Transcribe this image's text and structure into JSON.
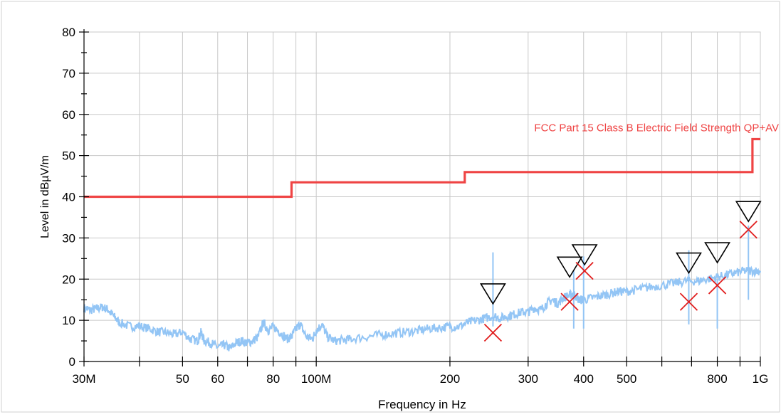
{
  "chart_data": {
    "type": "line",
    "xlabel": "Frequency in Hz",
    "ylabel": "Level in dBµV/m",
    "x_scale": "log",
    "xlim": [
      30000000,
      1000000000
    ],
    "ylim": [
      0,
      80
    ],
    "grid": true,
    "x_ticks": [
      {
        "value": 30000000,
        "label": "30M"
      },
      {
        "value": 50000000,
        "label": "50"
      },
      {
        "value": 60000000,
        "label": "60"
      },
      {
        "value": 80000000,
        "label": "80"
      },
      {
        "value": 100000000,
        "label": "100M"
      },
      {
        "value": 200000000,
        "label": "200"
      },
      {
        "value": 300000000,
        "label": "300"
      },
      {
        "value": 400000000,
        "label": "400"
      },
      {
        "value": 500000000,
        "label": "500"
      },
      {
        "value": 800000000,
        "label": "800"
      },
      {
        "value": 1000000000,
        "label": "1G"
      }
    ],
    "x_grid": [
      30000000,
      40000000,
      50000000,
      60000000,
      70000000,
      80000000,
      90000000,
      100000000,
      200000000,
      300000000,
      400000000,
      500000000,
      600000000,
      700000000,
      800000000,
      900000000,
      1000000000
    ],
    "y_ticks": [
      0,
      10,
      20,
      30,
      40,
      50,
      60,
      70,
      80
    ],
    "limit_line": {
      "label": "FCC Part 15 Class B Electric Field Strength QP+AV",
      "color": "#ef4444",
      "points": [
        [
          30000000,
          40
        ],
        [
          88000000,
          40
        ],
        [
          88000000,
          43.5
        ],
        [
          216000000,
          43.5
        ],
        [
          216000000,
          46
        ],
        [
          960000000,
          46
        ],
        [
          960000000,
          54
        ],
        [
          1000000000,
          54
        ]
      ]
    },
    "spectrum": {
      "color": "#93c5f5",
      "points": [
        [
          30000000,
          13
        ],
        [
          31000000,
          12.5
        ],
        [
          32000000,
          12.8
        ],
        [
          33000000,
          13.2
        ],
        [
          34000000,
          12.6
        ],
        [
          35000000,
          11
        ],
        [
          36000000,
          9.5
        ],
        [
          38000000,
          8.5
        ],
        [
          40000000,
          8.6
        ],
        [
          42000000,
          8
        ],
        [
          44000000,
          7.2
        ],
        [
          46000000,
          7
        ],
        [
          48000000,
          6.5
        ],
        [
          50000000,
          7.2
        ],
        [
          52000000,
          5.5
        ],
        [
          54000000,
          5
        ],
        [
          55000000,
          7
        ],
        [
          56000000,
          5
        ],
        [
          58000000,
          4.5
        ],
        [
          60000000,
          3.5
        ],
        [
          62000000,
          4
        ],
        [
          64000000,
          3.2
        ],
        [
          66000000,
          4.5
        ],
        [
          68000000,
          5
        ],
        [
          70000000,
          4.5
        ],
        [
          72000000,
          5
        ],
        [
          74000000,
          6
        ],
        [
          76000000,
          9.5
        ],
        [
          78000000,
          7.5
        ],
        [
          80000000,
          8.5
        ],
        [
          83000000,
          7
        ],
        [
          86000000,
          5.5
        ],
        [
          88000000,
          6
        ],
        [
          90000000,
          8
        ],
        [
          92000000,
          9
        ],
        [
          95000000,
          6
        ],
        [
          98000000,
          5.5
        ],
        [
          100000000,
          7.5
        ],
        [
          103000000,
          9
        ],
        [
          106000000,
          6
        ],
        [
          110000000,
          5
        ],
        [
          115000000,
          5.2
        ],
        [
          120000000,
          5.5
        ],
        [
          130000000,
          6
        ],
        [
          140000000,
          6.5
        ],
        [
          150000000,
          6.8
        ],
        [
          160000000,
          7.2
        ],
        [
          170000000,
          7.5
        ],
        [
          180000000,
          8
        ],
        [
          190000000,
          8.2
        ],
        [
          200000000,
          8.5
        ],
        [
          210000000,
          8.5
        ],
        [
          220000000,
          9.5
        ],
        [
          230000000,
          10
        ],
        [
          240000000,
          10.5
        ],
        [
          250000000,
          11
        ],
        [
          260000000,
          10.5
        ],
        [
          270000000,
          11
        ],
        [
          280000000,
          11.5
        ],
        [
          290000000,
          12
        ],
        [
          300000000,
          12
        ],
        [
          310000000,
          13
        ],
        [
          320000000,
          12.5
        ],
        [
          330000000,
          14
        ],
        [
          340000000,
          15
        ],
        [
          350000000,
          14
        ],
        [
          360000000,
          15.5
        ],
        [
          370000000,
          16
        ],
        [
          380000000,
          16.5
        ],
        [
          390000000,
          15
        ],
        [
          400000000,
          15
        ],
        [
          420000000,
          15.5
        ],
        [
          440000000,
          16
        ],
        [
          460000000,
          16.5
        ],
        [
          480000000,
          17
        ],
        [
          500000000,
          17
        ],
        [
          530000000,
          17.5
        ],
        [
          560000000,
          18
        ],
        [
          600000000,
          18.5
        ],
        [
          640000000,
          19
        ],
        [
          680000000,
          19.5
        ],
        [
          720000000,
          19.5
        ],
        [
          760000000,
          20
        ],
        [
          800000000,
          20.5
        ],
        [
          840000000,
          21
        ],
        [
          880000000,
          21.5
        ],
        [
          920000000,
          22
        ],
        [
          960000000,
          22
        ],
        [
          1000000000,
          22
        ]
      ],
      "spikes": [
        [
          250000000,
          26.5
        ],
        [
          380000000,
          22
        ],
        [
          400000000,
          25.5
        ],
        [
          690000000,
          27
        ],
        [
          800000000,
          20
        ],
        [
          940000000,
          33
        ]
      ]
    },
    "qp_markers": {
      "shape": "triangle",
      "color": "#000000",
      "points": [
        [
          250000000,
          14
        ],
        [
          372000000,
          20.5
        ],
        [
          402000000,
          23.5
        ],
        [
          690000000,
          21.5
        ],
        [
          800000000,
          24
        ],
        [
          940000000,
          34
        ]
      ]
    },
    "av_markers": {
      "shape": "cross",
      "color": "#e11d1d",
      "points": [
        [
          250000000,
          7
        ],
        [
          372000000,
          14.5
        ],
        [
          402000000,
          22
        ],
        [
          690000000,
          14.5
        ],
        [
          800000000,
          18.5
        ],
        [
          940000000,
          32
        ]
      ]
    }
  }
}
